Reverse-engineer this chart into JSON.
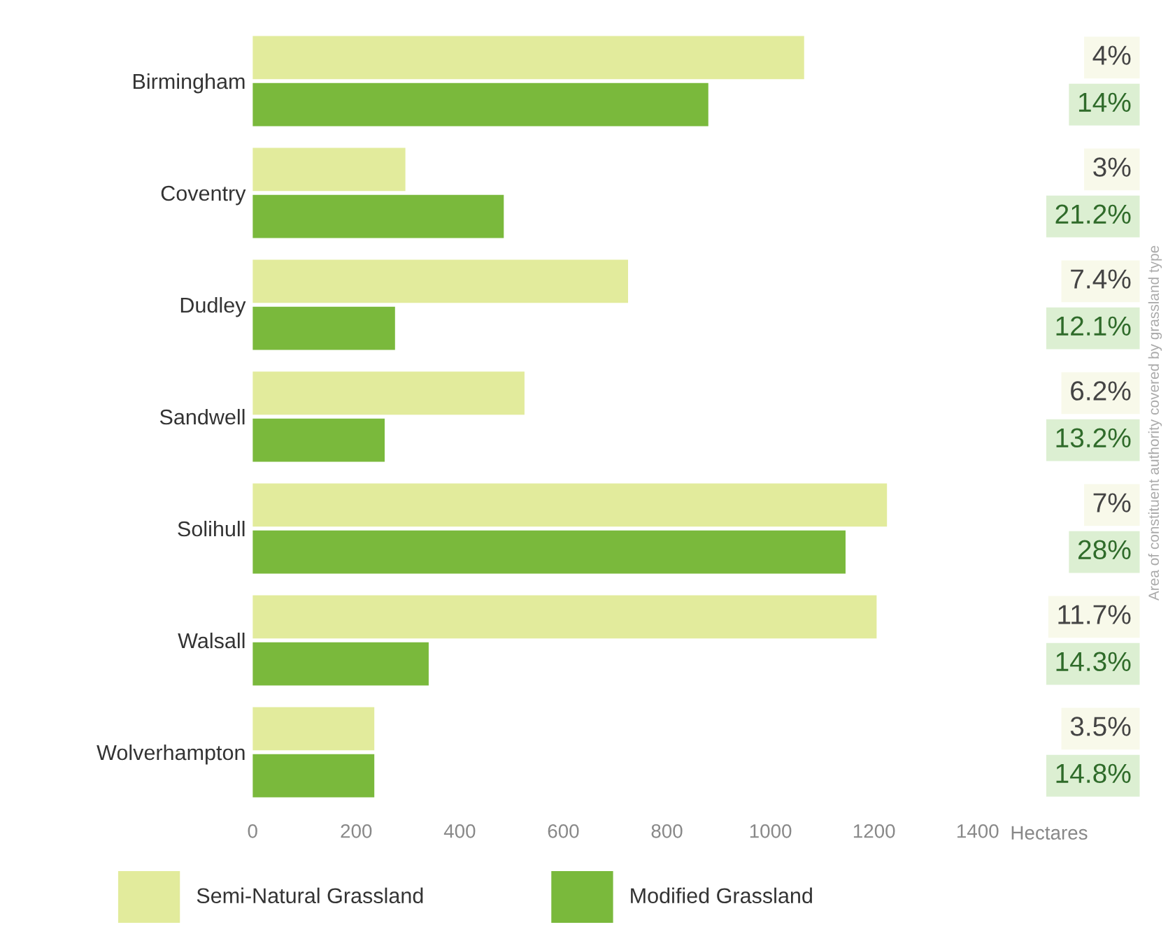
{
  "chart_data": {
    "type": "bar",
    "orientation": "horizontal",
    "categories": [
      "Birmingham",
      "Coventry",
      "Dudley",
      "Sandwell",
      "Solihull",
      "Walsall",
      "Wolverhampton"
    ],
    "series": [
      {
        "name": "Semi-Natural Grassland",
        "color": "#e2eb9c",
        "values": [
          1065,
          295,
          725,
          525,
          1225,
          1205,
          235
        ]
      },
      {
        "name": "Modified Grassland",
        "color": "#7ab93c",
        "values": [
          880,
          485,
          275,
          255,
          1145,
          340,
          235
        ]
      }
    ],
    "xlim": [
      0,
      1400
    ],
    "xticks": [
      0,
      200,
      400,
      600,
      800,
      1000,
      1200,
      1400
    ],
    "xlabel": "Hectares",
    "annotations": [
      "4%",
      "14%",
      "3%",
      "21.2%",
      "7.4%",
      "12.1%",
      "6.2%",
      "13.2%",
      "7%",
      "28%",
      "11.7%",
      "14.3%",
      "3.5%",
      "14.8%",
      "Area of constituent authority covered by grassland type"
    ],
    "grid": false,
    "legend": "bottom"
  }
}
